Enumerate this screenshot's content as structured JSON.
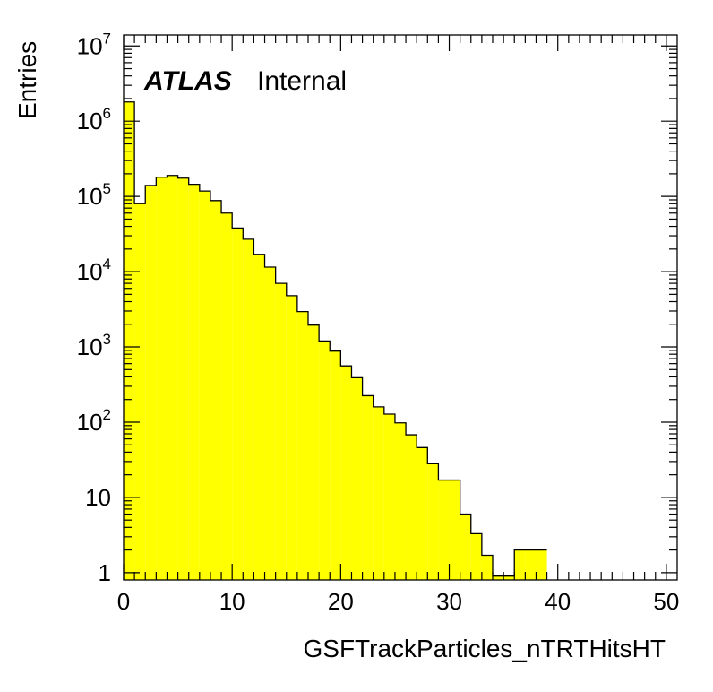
{
  "chart_data": {
    "type": "bar",
    "style": "histogram",
    "title": "",
    "xlabel": "GSFTrackParticles_nTRTHitsHT",
    "ylabel": "Entries",
    "label": {
      "bold": "ATLAS",
      "text": "Internal"
    },
    "x_ticks": [
      0,
      10,
      20,
      30,
      40,
      50
    ],
    "y_ticks": [
      {
        "value": 1,
        "base": "1",
        "exp": ""
      },
      {
        "value": 10,
        "base": "10",
        "exp": ""
      },
      {
        "value": 100,
        "base": "10",
        "exp": "2"
      },
      {
        "value": 1000,
        "base": "10",
        "exp": "3"
      },
      {
        "value": 10000,
        "base": "10",
        "exp": "4"
      },
      {
        "value": 100000,
        "base": "10",
        "exp": "5"
      },
      {
        "value": 1000000,
        "base": "10",
        "exp": "6"
      },
      {
        "value": 10000000,
        "base": "10",
        "exp": "7"
      }
    ],
    "xlim": [
      0,
      51
    ],
    "ylim": [
      0.8,
      14000000
    ],
    "log_y": true,
    "bin_width": 1,
    "bin_edges_start": 0,
    "fill_color": "#ffff00",
    "line_color": "#000000",
    "values": [
      1800000,
      80000,
      140000,
      180000,
      190000,
      175000,
      145000,
      118000,
      88000,
      60000,
      38000,
      27000,
      17000,
      11500,
      7000,
      4800,
      2950,
      1950,
      1200,
      880,
      560,
      390,
      225,
      160,
      128,
      98,
      68,
      46,
      28,
      17,
      17,
      6,
      3.3,
      1.7,
      0.9,
      0.9,
      2,
      2,
      2
    ]
  }
}
